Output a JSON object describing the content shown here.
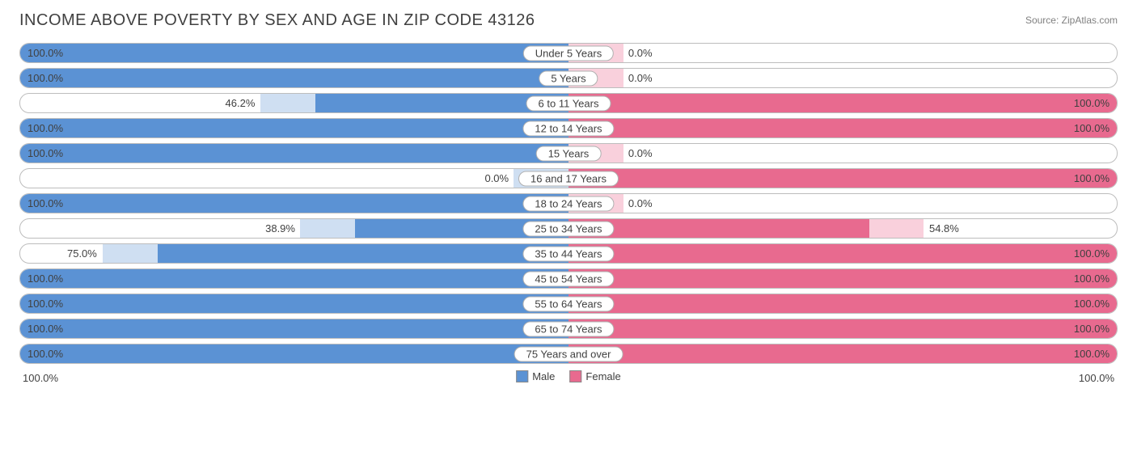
{
  "title": "INCOME ABOVE POVERTY BY SEX AND AGE IN ZIP CODE 43126",
  "source": "Source: ZipAtlas.com",
  "colors": {
    "male": "#5b92d4",
    "male_ghost": "#a7c4e8",
    "female": "#e86a8f",
    "female_ghost": "#f4a9bf",
    "track_border": "#bdbdbd",
    "text": "#404040"
  },
  "axis": {
    "left_label": "100.0%",
    "right_label": "100.0%"
  },
  "legend": {
    "male": "Male",
    "female": "Female"
  },
  "ghost_extra_pct": 10,
  "rows": [
    {
      "label": "Under 5 Years",
      "male": 100.0,
      "female": 0.0
    },
    {
      "label": "5 Years",
      "male": 100.0,
      "female": 0.0
    },
    {
      "label": "6 to 11 Years",
      "male": 46.2,
      "female": 100.0
    },
    {
      "label": "12 to 14 Years",
      "male": 100.0,
      "female": 100.0
    },
    {
      "label": "15 Years",
      "male": 100.0,
      "female": 0.0
    },
    {
      "label": "16 and 17 Years",
      "male": 0.0,
      "female": 100.0
    },
    {
      "label": "18 to 24 Years",
      "male": 100.0,
      "female": 0.0
    },
    {
      "label": "25 to 34 Years",
      "male": 38.9,
      "female": 54.8
    },
    {
      "label": "35 to 44 Years",
      "male": 75.0,
      "female": 100.0
    },
    {
      "label": "45 to 54 Years",
      "male": 100.0,
      "female": 100.0
    },
    {
      "label": "55 to 64 Years",
      "male": 100.0,
      "female": 100.0
    },
    {
      "label": "65 to 74 Years",
      "male": 100.0,
      "female": 100.0
    },
    {
      "label": "75 Years and over",
      "male": 100.0,
      "female": 100.0
    }
  ]
}
